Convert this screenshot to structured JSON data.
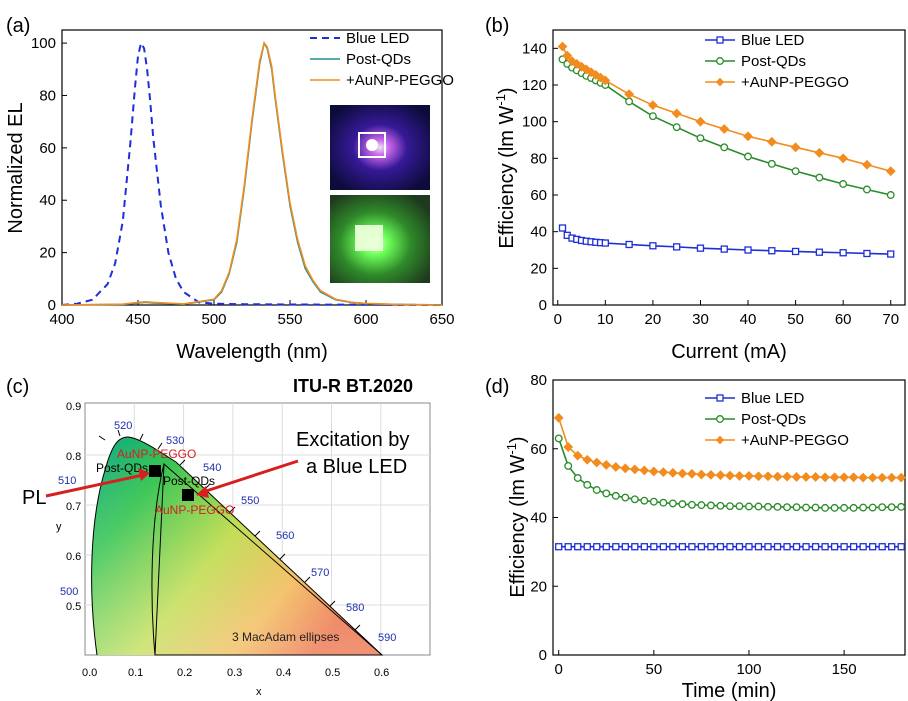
{
  "panels": {
    "a": {
      "label": "(a)",
      "chart_data": {
        "type": "line",
        "xlabel": "Wavelength (nm)",
        "ylabel": "Normalized EL",
        "xlim": [
          400,
          650
        ],
        "ylim": [
          0,
          105
        ],
        "xticks": [
          400,
          450,
          500,
          550,
          600,
          650
        ],
        "yticks": [
          0,
          20,
          40,
          60,
          80,
          100
        ],
        "legend_position": "top-right",
        "series": [
          {
            "name": "Blue LED",
            "color": "#1f2fd6",
            "style": "dashed",
            "x": [
              400,
              410,
              420,
              430,
              435,
              440,
              445,
              448,
              450,
              452,
              454,
              456,
              458,
              460,
              465,
              470,
              475,
              480,
              490,
              500,
              520,
              550,
              600,
              650
            ],
            "y": [
              0,
              0.5,
              2,
              8,
              16,
              32,
              62,
              83,
              95,
              100,
              98,
              90,
              78,
              64,
              38,
              20,
              10,
              5,
              1,
              0.5,
              0.3,
              0.2,
              0.1,
              0
            ]
          },
          {
            "name": "Post-QDs",
            "color": "#1f8f8f",
            "style": "solid",
            "x": [
              400,
              440,
              450,
              455,
              460,
              480,
              500,
              505,
              510,
              515,
              520,
              525,
              530,
              533,
              535,
              538,
              540,
              545,
              550,
              555,
              560,
              565,
              570,
              580,
              590,
              600,
              620,
              650
            ],
            "y": [
              0,
              0.2,
              0.8,
              1,
              0.8,
              0.3,
              2,
              5,
              12,
              24,
              45,
              70,
              92,
              100,
              98,
              90,
              80,
              58,
              38,
              24,
              14,
              9,
              5,
              2,
              1,
              0.5,
              0.2,
              0
            ]
          },
          {
            "name": "+AuNP-PEGGO",
            "color": "#f28c1e",
            "style": "solid",
            "x": [
              400,
              440,
              450,
              455,
              460,
              480,
              500,
              505,
              510,
              515,
              520,
              525,
              530,
              533,
              535,
              538,
              540,
              545,
              550,
              555,
              560,
              565,
              570,
              580,
              590,
              600,
              620,
              650
            ],
            "y": [
              0,
              0.3,
              1,
              1.2,
              1,
              0.4,
              2.2,
              5.5,
              12.5,
              25,
              46,
              71,
              93,
              100,
              98.5,
              91,
              81,
              59,
              39,
              25,
              15,
              9.5,
              5.5,
              2.2,
              1.1,
              0.6,
              0.2,
              0
            ]
          }
        ]
      }
    },
    "b": {
      "label": "(b)",
      "chart_data": {
        "type": "line",
        "xlabel": "Current (mA)",
        "ylabel": "Efficiency (lm W",
        "ylabel_sup": "-1",
        "ylabel_close": ")",
        "xlim": [
          -1,
          73
        ],
        "ylim": [
          0,
          150
        ],
        "xticks": [
          0,
          10,
          20,
          30,
          40,
          50,
          60,
          70
        ],
        "yticks": [
          0,
          20,
          40,
          60,
          80,
          100,
          120,
          140
        ],
        "legend_position": "top-right",
        "series": [
          {
            "name": "Blue LED",
            "color": "#1f2fd6",
            "marker": "square",
            "x": [
              1,
              2,
              3,
              4,
              5,
              6,
              7,
              8,
              9,
              10,
              15,
              20,
              25,
              30,
              35,
              40,
              45,
              50,
              55,
              60,
              65,
              70
            ],
            "y": [
              42,
              38,
              36.5,
              35.8,
              35.2,
              34.8,
              34.5,
              34.2,
              34,
              33.8,
              33,
              32.3,
              31.7,
              31,
              30.5,
              30,
              29.6,
              29.2,
              28.8,
              28.5,
              28.1,
              27.8
            ]
          },
          {
            "name": "Post-QDs",
            "color": "#2a8c2a",
            "marker": "circle",
            "x": [
              1,
              2,
              3,
              4,
              5,
              6,
              7,
              8,
              9,
              10,
              15,
              20,
              25,
              30,
              35,
              40,
              45,
              50,
              55,
              60,
              65,
              70
            ],
            "y": [
              134,
              131.5,
              129.5,
              128,
              126.5,
              125,
              123.8,
              122.5,
              121.2,
              120,
              111,
              103,
              97,
              91,
              86,
              81,
              77,
              73,
              69.5,
              66,
              63,
              60
            ]
          },
          {
            "name": "+AuNP-PEGGO",
            "color": "#f28c1e",
            "marker": "diamond",
            "x": [
              1,
              2,
              3,
              4,
              5,
              6,
              7,
              8,
              9,
              10,
              15,
              20,
              25,
              30,
              35,
              40,
              45,
              50,
              55,
              60,
              65,
              70
            ],
            "y": [
              141,
              136,
              133,
              131.5,
              130,
              128.5,
              127,
              125.5,
              124,
              122.5,
              115,
              109,
              104.5,
              100,
              96,
              92,
              89,
              86,
              83,
              80,
              76.5,
              73
            ]
          }
        ]
      }
    },
    "c": {
      "label": "(c)",
      "title": "ITU-R BT.2020",
      "xlabel": "x",
      "ylabel": "y",
      "xticks": [
        "0.0",
        "0.1",
        "0.2",
        "0.3",
        "0.4",
        "0.5",
        "0.6"
      ],
      "yticks": [
        "0.5",
        "0.6",
        "0.7",
        "0.8",
        "0.9"
      ],
      "wavelength_labels": [
        "500",
        "510",
        "520",
        "530",
        "540",
        "550",
        "560",
        "570",
        "580",
        "590"
      ],
      "annotations": {
        "pl": "PL",
        "excitation_line1": "Excitation by",
        "excitation_line2": "a Blue LED",
        "post_qds_left": "Post-QDs",
        "aunp_left": "AuNP-PEGGO",
        "post_qds_right": "Post-QDs",
        "aunp_right": "AuNP-PEGGO",
        "macadam": "3  MacAdam ellipses"
      },
      "points": [
        {
          "name": "PL",
          "x": 0.135,
          "y": 0.765
        },
        {
          "name": "Excitation by a Blue LED",
          "x": 0.2,
          "y": 0.715
        }
      ]
    },
    "d": {
      "label": "(d)",
      "chart_data": {
        "type": "line",
        "xlabel": "Time (min)",
        "ylabel": "Efficiency (lm W",
        "ylabel_sup": "-1",
        "ylabel_close": ")",
        "xlim": [
          -3,
          182
        ],
        "ylim": [
          0,
          80
        ],
        "xticks": [
          0,
          50,
          100,
          150
        ],
        "yticks": [
          0,
          20,
          40,
          60,
          80
        ],
        "legend_position": "top-right",
        "series": [
          {
            "name": "Blue LED",
            "color": "#1f2fd6",
            "marker": "square",
            "x": [
              0,
              5,
              10,
              15,
              20,
              25,
              30,
              35,
              40,
              45,
              50,
              55,
              60,
              65,
              70,
              75,
              80,
              85,
              90,
              95,
              100,
              105,
              110,
              115,
              120,
              125,
              130,
              135,
              140,
              145,
              150,
              155,
              160,
              165,
              170,
              175,
              180
            ],
            "y": [
              31.5,
              31.5,
              31.5,
              31.5,
              31.5,
              31.5,
              31.5,
              31.5,
              31.5,
              31.5,
              31.5,
              31.5,
              31.5,
              31.5,
              31.5,
              31.5,
              31.5,
              31.5,
              31.5,
              31.5,
              31.5,
              31.5,
              31.5,
              31.5,
              31.5,
              31.5,
              31.5,
              31.5,
              31.5,
              31.5,
              31.5,
              31.5,
              31.5,
              31.5,
              31.5,
              31.5,
              31.5
            ]
          },
          {
            "name": "Post-QDs",
            "color": "#2a8c2a",
            "marker": "circle",
            "x": [
              0,
              5,
              10,
              15,
              20,
              25,
              30,
              35,
              40,
              45,
              50,
              55,
              60,
              65,
              70,
              75,
              80,
              85,
              90,
              95,
              100,
              105,
              110,
              115,
              120,
              125,
              130,
              135,
              140,
              145,
              150,
              155,
              160,
              165,
              170,
              175,
              180
            ],
            "y": [
              63,
              55,
              51.5,
              49.5,
              48,
              47,
              46.3,
              45.8,
              45.3,
              44.9,
              44.6,
              44.3,
              44.1,
              43.9,
              43.7,
              43.6,
              43.5,
              43.4,
              43.3,
              43.3,
              43.2,
              43.2,
              43.1,
              43.1,
              43,
              43,
              42.9,
              42.9,
              42.8,
              42.8,
              42.8,
              42.8,
              42.9,
              42.9,
              43,
              43,
              43.1
            ]
          },
          {
            "name": "+AuNP-PEGGO",
            "color": "#f28c1e",
            "marker": "diamond",
            "x": [
              0,
              5,
              10,
              15,
              20,
              25,
              30,
              35,
              40,
              45,
              50,
              55,
              60,
              65,
              70,
              75,
              80,
              85,
              90,
              95,
              100,
              105,
              110,
              115,
              120,
              125,
              130,
              135,
              140,
              145,
              150,
              155,
              160,
              165,
              170,
              175,
              180
            ],
            "y": [
              69,
              60.5,
              58,
              56.8,
              56,
              55.3,
              54.7,
              54.3,
              54,
              53.7,
              53.4,
              53.2,
              53,
              52.8,
              52.7,
              52.5,
              52.4,
              52.3,
              52.2,
              52.1,
              52.1,
              52,
              52,
              51.9,
              51.9,
              51.8,
              51.8,
              51.8,
              51.7,
              51.7,
              51.7,
              51.7,
              51.6,
              51.6,
              51.6,
              51.6,
              51.6
            ]
          }
        ]
      }
    }
  }
}
